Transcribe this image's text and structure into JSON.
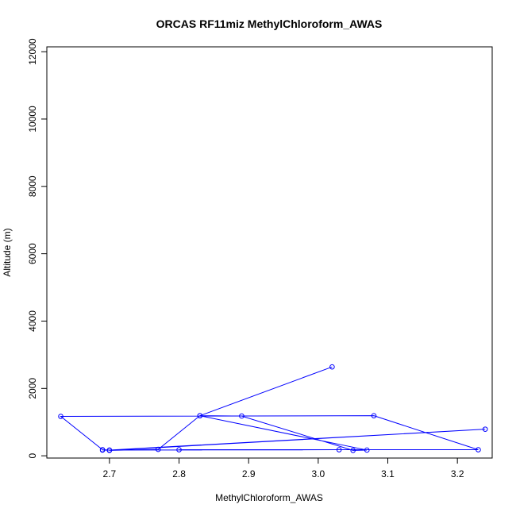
{
  "chart_data": {
    "type": "line",
    "title": "ORCAS RF11miz MethylChloroform_AWAS",
    "xlabel": "MethylChloroform_AWAS",
    "ylabel": "Altitude (m)",
    "xlim": [
      2.61,
      3.25
    ],
    "ylim": [
      0,
      12000
    ],
    "x_ticks": [
      "2.7",
      "2.8",
      "2.9",
      "3.0",
      "3.1",
      "3.2"
    ],
    "y_ticks": [
      "0",
      "2000",
      "4000",
      "6000",
      "8000",
      "10000",
      "12000"
    ],
    "series_color": "#0000ff",
    "grid": false,
    "series": [
      {
        "x": [
          3.02,
          2.83,
          2.89,
          3.05,
          3.07,
          2.83,
          2.77,
          2.7,
          3.24,
          2.7,
          2.69,
          2.63,
          3.08,
          3.23,
          2.8,
          3.03,
          2.69
        ],
        "y": [
          2640,
          1190,
          1180,
          160,
          170,
          1190,
          190,
          160,
          790,
          170,
          180,
          1170,
          1190,
          180,
          180,
          180,
          170
        ]
      }
    ]
  }
}
